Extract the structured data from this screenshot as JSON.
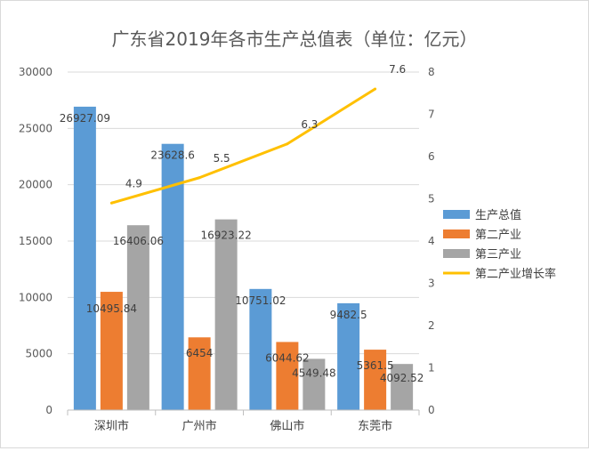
{
  "chart_data": {
    "type": "bar",
    "title": "广东省2019年各市生产总值表（单位：亿元）",
    "categories": [
      "深圳市",
      "广州市",
      "佛山市",
      "东莞市"
    ],
    "series": [
      {
        "name": "生产总值",
        "type": "bar",
        "axis": "left",
        "color": "#5b9bd5",
        "values": [
          26927.09,
          23628.6,
          10751.02,
          9482.5
        ],
        "labels": [
          "26927.09",
          "23628.6",
          "10751.02",
          "9482.5"
        ]
      },
      {
        "name": "第二产业",
        "type": "bar",
        "axis": "left",
        "color": "#ed7d31",
        "values": [
          10495.84,
          6454,
          6044.62,
          5361.5
        ],
        "labels": [
          "10495.84",
          "6454",
          "6044.62",
          "5361.5"
        ]
      },
      {
        "name": "第三产业",
        "type": "bar",
        "axis": "left",
        "color": "#a5a5a5",
        "values": [
          16406.06,
          16923.22,
          4549.48,
          4092.52
        ],
        "labels": [
          "16406.06",
          "16923.22",
          "4549.48",
          "4092.52"
        ]
      },
      {
        "name": "第二产业增长率",
        "type": "line",
        "axis": "right",
        "color": "#ffc000",
        "values": [
          4.9,
          5.5,
          6.3,
          7.6
        ],
        "labels": [
          "4.9",
          "5.5",
          "6.3",
          "7.6"
        ]
      }
    ],
    "ylim_left": [
      0,
      30000
    ],
    "yticks_left": [
      "0",
      "5000",
      "10000",
      "15000",
      "20000",
      "25000",
      "30000"
    ],
    "ylim_right": [
      0,
      8
    ],
    "yticks_right": [
      "0",
      "1",
      "2",
      "3",
      "4",
      "5",
      "6",
      "7",
      "8"
    ],
    "grid": true,
    "legend_position": "right"
  }
}
